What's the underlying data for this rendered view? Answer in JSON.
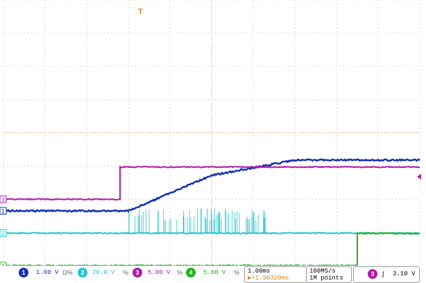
{
  "channels": [
    {
      "id": "1",
      "label": "1",
      "scale": "1.00 V",
      "suffix": "Ω%",
      "color": "#1530b8"
    },
    {
      "id": "2",
      "label": "2",
      "scale": "20.0 V",
      "suffix": "%",
      "color": "#22c6cf"
    },
    {
      "id": "3",
      "label": "3",
      "scale": "5.00 V",
      "suffix": "%",
      "color": "#b01aa8"
    },
    {
      "id": "4",
      "label": "4",
      "scale": "5.00 V",
      "suffix": "%",
      "color": "#22b020"
    }
  ],
  "timebase": {
    "scale": "1.00ms",
    "trigger_pos": "▶+1.90320ms"
  },
  "acquisition": {
    "rate": "100MS/s",
    "points": "1M points"
  },
  "trigger": {
    "channel": "3",
    "slope_symbol": "∫",
    "level": "3.10 V"
  },
  "trigger_marker": "T",
  "colors": {
    "grid": "#bfbfbf",
    "center": "#f0c27a",
    "accent": "#d9861a"
  },
  "chart_data": {
    "type": "line",
    "x_divisions": 10,
    "y_divisions": 8,
    "series": [
      {
        "channel": "1",
        "x": [
          0,
          3.0,
          5.0,
          7.0,
          10.0
        ],
        "y": [
          -2.35,
          -2.35,
          -1.28,
          -0.82,
          -0.82
        ]
      },
      {
        "channel": "2",
        "x": [
          0,
          3.0,
          6.3,
          10.0
        ],
        "y": [
          -3.02,
          -3.02,
          -3.02,
          -3.02
        ],
        "burst_region": [
          3.0,
          6.3
        ]
      },
      {
        "channel": "3",
        "x": [
          0,
          2.8,
          2.8,
          10.0
        ],
        "y": [
          0,
          0,
          0.97,
          0.97
        ]
      },
      {
        "channel": "4",
        "x": [
          0,
          8.5,
          8.5,
          10.0
        ],
        "y": [
          0,
          0,
          0.97,
          0.97
        ]
      }
    ]
  }
}
